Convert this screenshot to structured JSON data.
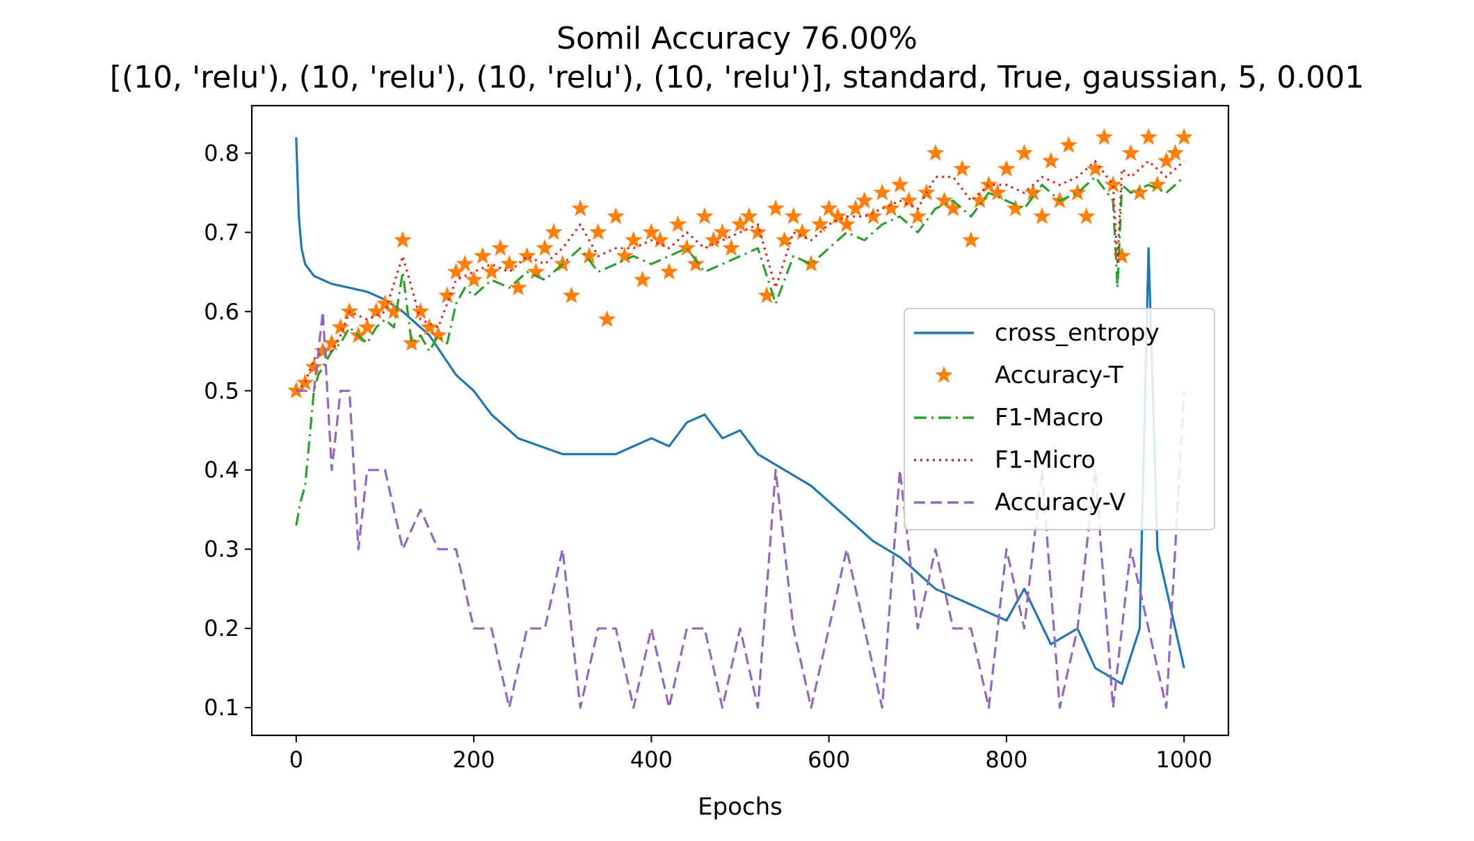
{
  "chart_data": {
    "type": "line",
    "title": "Somil Accuracy 76.00%",
    "subtitle": "[(10, 'relu'), (10, 'relu'), (10, 'relu'), (10, 'relu')], standard, True, gaussian, 5, 0.001",
    "xlabel": "Epochs",
    "ylabel": "",
    "xlim": [
      -50,
      1050
    ],
    "ylim": [
      0.065,
      0.86
    ],
    "xticks": [
      0,
      200,
      400,
      600,
      800,
      1000
    ],
    "yticks": [
      0.1,
      0.2,
      0.3,
      0.4,
      0.5,
      0.6,
      0.7,
      0.8
    ],
    "xtick_labels": [
      "0",
      "200",
      "400",
      "600",
      "800",
      "1000"
    ],
    "ytick_labels": [
      "0.1",
      "0.2",
      "0.3",
      "0.4",
      "0.5",
      "0.6",
      "0.7",
      "0.8"
    ],
    "grid": false,
    "legend_position": "center-right",
    "series": [
      {
        "name": "cross_entropy",
        "color": "#1f77b4",
        "style": "solid",
        "x": [
          0,
          3,
          6,
          10,
          20,
          40,
          60,
          80,
          100,
          120,
          150,
          180,
          200,
          220,
          250,
          300,
          330,
          360,
          380,
          400,
          420,
          440,
          460,
          480,
          500,
          520,
          550,
          580,
          600,
          620,
          650,
          680,
          700,
          720,
          740,
          760,
          780,
          800,
          820,
          850,
          880,
          900,
          930,
          950,
          960,
          970,
          980,
          1000
        ],
        "y": [
          0.82,
          0.72,
          0.68,
          0.66,
          0.645,
          0.635,
          0.63,
          0.625,
          0.615,
          0.6,
          0.57,
          0.52,
          0.5,
          0.47,
          0.44,
          0.42,
          0.42,
          0.42,
          0.43,
          0.44,
          0.43,
          0.46,
          0.47,
          0.44,
          0.45,
          0.42,
          0.4,
          0.38,
          0.36,
          0.34,
          0.31,
          0.29,
          0.27,
          0.25,
          0.24,
          0.23,
          0.22,
          0.21,
          0.25,
          0.18,
          0.2,
          0.15,
          0.13,
          0.2,
          0.68,
          0.3,
          0.25,
          0.15
        ]
      },
      {
        "name": "Accuracy-T",
        "color": "#ff7f0e",
        "style": "star",
        "x": [
          0,
          10,
          20,
          30,
          40,
          50,
          60,
          70,
          80,
          90,
          100,
          110,
          120,
          130,
          140,
          150,
          160,
          170,
          180,
          190,
          200,
          210,
          220,
          230,
          240,
          250,
          260,
          270,
          280,
          290,
          300,
          310,
          320,
          330,
          340,
          350,
          360,
          370,
          380,
          390,
          400,
          410,
          420,
          430,
          440,
          450,
          460,
          470,
          480,
          490,
          500,
          510,
          520,
          530,
          540,
          550,
          560,
          570,
          580,
          590,
          600,
          610,
          620,
          630,
          640,
          650,
          660,
          670,
          680,
          690,
          700,
          710,
          720,
          730,
          740,
          750,
          760,
          770,
          780,
          790,
          800,
          810,
          820,
          830,
          840,
          850,
          860,
          870,
          880,
          890,
          900,
          910,
          920,
          930,
          940,
          950,
          960,
          970,
          980,
          990,
          1000
        ],
        "y": [
          0.5,
          0.51,
          0.53,
          0.55,
          0.56,
          0.58,
          0.6,
          0.57,
          0.58,
          0.6,
          0.61,
          0.6,
          0.69,
          0.56,
          0.6,
          0.58,
          0.57,
          0.62,
          0.65,
          0.66,
          0.64,
          0.67,
          0.65,
          0.68,
          0.66,
          0.63,
          0.67,
          0.65,
          0.68,
          0.7,
          0.66,
          0.62,
          0.73,
          0.67,
          0.7,
          0.59,
          0.72,
          0.67,
          0.69,
          0.64,
          0.7,
          0.69,
          0.65,
          0.71,
          0.68,
          0.66,
          0.72,
          0.69,
          0.7,
          0.68,
          0.71,
          0.72,
          0.7,
          0.62,
          0.73,
          0.69,
          0.72,
          0.7,
          0.66,
          0.71,
          0.73,
          0.72,
          0.71,
          0.73,
          0.74,
          0.72,
          0.75,
          0.73,
          0.76,
          0.74,
          0.72,
          0.75,
          0.8,
          0.74,
          0.73,
          0.78,
          0.69,
          0.74,
          0.76,
          0.75,
          0.78,
          0.73,
          0.8,
          0.75,
          0.72,
          0.79,
          0.74,
          0.81,
          0.75,
          0.72,
          0.78,
          0.82,
          0.76,
          0.67,
          0.8,
          0.75,
          0.82,
          0.76,
          0.79,
          0.8,
          0.82
        ]
      },
      {
        "name": "F1-Macro",
        "color": "#2ca02c",
        "style": "dashdot",
        "x": [
          0,
          5,
          10,
          15,
          20,
          25,
          30,
          40,
          50,
          60,
          70,
          80,
          90,
          100,
          110,
          120,
          130,
          140,
          150,
          160,
          170,
          180,
          190,
          200,
          220,
          240,
          260,
          280,
          300,
          320,
          340,
          360,
          380,
          400,
          420,
          440,
          460,
          480,
          500,
          520,
          540,
          560,
          580,
          600,
          620,
          640,
          660,
          680,
          700,
          720,
          740,
          760,
          780,
          800,
          820,
          840,
          860,
          880,
          900,
          920,
          925,
          930,
          940,
          960,
          980,
          1000
        ],
        "y": [
          0.33,
          0.36,
          0.38,
          0.44,
          0.5,
          0.52,
          0.53,
          0.55,
          0.56,
          0.58,
          0.57,
          0.56,
          0.58,
          0.59,
          0.58,
          0.65,
          0.56,
          0.57,
          0.55,
          0.57,
          0.56,
          0.61,
          0.63,
          0.62,
          0.64,
          0.63,
          0.65,
          0.64,
          0.66,
          0.68,
          0.65,
          0.66,
          0.67,
          0.66,
          0.67,
          0.68,
          0.65,
          0.66,
          0.67,
          0.68,
          0.61,
          0.67,
          0.66,
          0.68,
          0.7,
          0.69,
          0.71,
          0.72,
          0.7,
          0.73,
          0.74,
          0.72,
          0.75,
          0.74,
          0.73,
          0.76,
          0.74,
          0.75,
          0.77,
          0.74,
          0.63,
          0.76,
          0.75,
          0.76,
          0.75,
          0.77
        ]
      },
      {
        "name": "F1-Micro",
        "color": "#d62728",
        "style": "dotted",
        "x": [
          0,
          10,
          20,
          30,
          40,
          50,
          60,
          80,
          100,
          120,
          140,
          160,
          180,
          200,
          220,
          240,
          260,
          280,
          300,
          320,
          340,
          360,
          380,
          400,
          420,
          440,
          460,
          480,
          500,
          520,
          540,
          560,
          580,
          600,
          620,
          640,
          660,
          680,
          700,
          720,
          740,
          760,
          780,
          800,
          820,
          840,
          860,
          880,
          900,
          920,
          925,
          930,
          940,
          960,
          980,
          1000
        ],
        "y": [
          0.5,
          0.51,
          0.54,
          0.55,
          0.55,
          0.57,
          0.6,
          0.59,
          0.6,
          0.67,
          0.59,
          0.58,
          0.64,
          0.65,
          0.66,
          0.65,
          0.67,
          0.66,
          0.68,
          0.71,
          0.67,
          0.68,
          0.68,
          0.69,
          0.68,
          0.7,
          0.68,
          0.69,
          0.7,
          0.71,
          0.63,
          0.7,
          0.69,
          0.71,
          0.72,
          0.72,
          0.73,
          0.74,
          0.73,
          0.77,
          0.77,
          0.74,
          0.76,
          0.76,
          0.75,
          0.77,
          0.76,
          0.77,
          0.79,
          0.76,
          0.66,
          0.78,
          0.77,
          0.79,
          0.77,
          0.79
        ]
      },
      {
        "name": "Accuracy-V",
        "color": "#9467bd",
        "style": "dashed",
        "x": [
          0,
          10,
          20,
          30,
          40,
          50,
          60,
          70,
          80,
          100,
          120,
          140,
          160,
          180,
          200,
          220,
          240,
          260,
          280,
          300,
          320,
          340,
          360,
          380,
          400,
          420,
          440,
          460,
          480,
          500,
          520,
          540,
          560,
          580,
          600,
          620,
          640,
          660,
          680,
          700,
          720,
          740,
          760,
          780,
          800,
          820,
          840,
          860,
          880,
          900,
          920,
          940,
          960,
          980,
          1000
        ],
        "y": [
          0.5,
          0.5,
          0.5,
          0.6,
          0.4,
          0.5,
          0.5,
          0.3,
          0.4,
          0.4,
          0.3,
          0.35,
          0.3,
          0.3,
          0.2,
          0.2,
          0.1,
          0.2,
          0.2,
          0.3,
          0.1,
          0.2,
          0.2,
          0.1,
          0.2,
          0.1,
          0.2,
          0.2,
          0.1,
          0.2,
          0.1,
          0.4,
          0.2,
          0.1,
          0.2,
          0.3,
          0.2,
          0.1,
          0.4,
          0.2,
          0.3,
          0.2,
          0.2,
          0.1,
          0.3,
          0.2,
          0.4,
          0.1,
          0.2,
          0.4,
          0.1,
          0.3,
          0.2,
          0.1,
          0.5
        ]
      }
    ]
  }
}
